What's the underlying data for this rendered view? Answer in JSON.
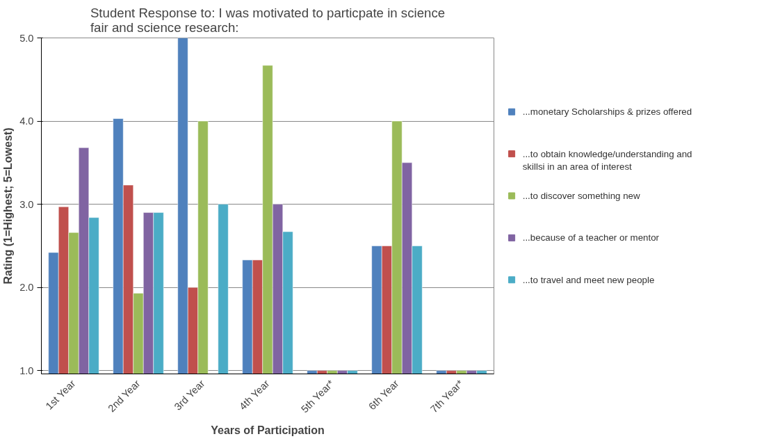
{
  "chart_data": {
    "type": "bar",
    "title": "Student Response to: I was motivated to particpate in science fair and science research:",
    "xlabel": "Years of Participation",
    "ylabel": "Rating (1=Highest; 5=Lowest)",
    "categories": [
      "1st Year",
      "2nd Year",
      "3rd Year",
      "4th Year",
      "5th Year*",
      "6th Year",
      "7th Year*"
    ],
    "series": [
      {
        "name": "...monetary Scholarships & prizes offered",
        "color": "#4f81bd",
        "values": [
          2.42,
          4.03,
          5.0,
          2.33,
          1.0,
          2.5,
          1.0
        ]
      },
      {
        "name": "...to obtain knowledge/understanding and skillsi in an area of interest",
        "color": "#c0504d",
        "values": [
          2.97,
          3.23,
          2.0,
          2.33,
          1.0,
          2.5,
          1.0
        ]
      },
      {
        "name": "...to discover something new",
        "color": "#9bbb59",
        "values": [
          2.66,
          1.93,
          4.0,
          4.67,
          1.0,
          4.0,
          1.0
        ]
      },
      {
        "name": "...because of a teacher or mentor",
        "color": "#8064a2",
        "values": [
          3.68,
          2.9,
          null,
          3.0,
          1.0,
          3.5,
          1.0
        ]
      },
      {
        "name": "...to travel and meet new people",
        "color": "#4bacc6",
        "values": [
          2.84,
          2.9,
          3.0,
          2.67,
          1.0,
          2.5,
          1.0
        ]
      }
    ],
    "ylim": [
      0.96,
      5.0
    ],
    "yticks": [
      {
        "value": 1,
        "label": "1.0"
      },
      {
        "value": 2,
        "label": "2.0"
      },
      {
        "value": 3,
        "label": "3.0"
      },
      {
        "value": 4,
        "label": "4.0"
      },
      {
        "value": 5,
        "label": "5.0"
      }
    ],
    "grid": "y",
    "legend": "right"
  }
}
